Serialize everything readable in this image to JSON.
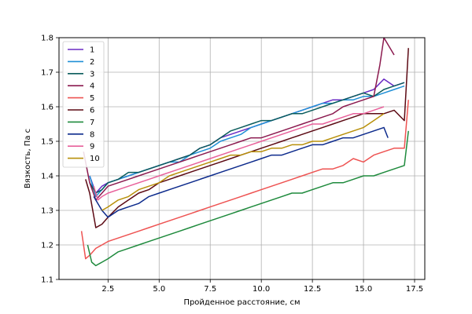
{
  "chart_data": {
    "type": "line",
    "xlabel": "Пройденное расстояние, см",
    "ylabel": "Вязкость, Па с",
    "xlim": [
      0.1,
      18.0
    ],
    "ylim": [
      1.1,
      1.8
    ],
    "xticks": [
      2.5,
      5.0,
      7.5,
      10.0,
      12.5,
      15.0,
      17.5
    ],
    "xtick_labels": [
      "2.5",
      "5.0",
      "7.5",
      "10.0",
      "12.5",
      "15.0",
      "17.5"
    ],
    "yticks": [
      1.1,
      1.2,
      1.3,
      1.4,
      1.5,
      1.6,
      1.7,
      1.8
    ],
    "ytick_labels": [
      "1.1",
      "1.2",
      "1.3",
      "1.4",
      "1.5",
      "1.6",
      "1.7",
      "1.8"
    ],
    "grid": true,
    "legend_position": "top-left",
    "series": [
      {
        "name": "1",
        "color": "#6a2bc4",
        "x": [
          1.6,
          1.9,
          2.2,
          2.5,
          3.0,
          3.5,
          4.0,
          4.5,
          5.0,
          5.5,
          6.0,
          6.5,
          7.0,
          7.5,
          8.0,
          8.5,
          9.0,
          9.5,
          10.0,
          10.5,
          11.0,
          11.5,
          12.0,
          12.5,
          13.0,
          13.5,
          14.0,
          14.5,
          15.0,
          15.5,
          16.0,
          16.5,
          17.0
        ],
        "y": [
          1.4,
          1.35,
          1.37,
          1.38,
          1.39,
          1.4,
          1.41,
          1.42,
          1.43,
          1.44,
          1.45,
          1.46,
          1.48,
          1.49,
          1.51,
          1.52,
          1.53,
          1.54,
          1.55,
          1.56,
          1.57,
          1.58,
          1.59,
          1.6,
          1.61,
          1.62,
          1.62,
          1.63,
          1.64,
          1.65,
          1.68,
          1.66,
          1.67
        ]
      },
      {
        "name": "2",
        "color": "#1f8fd6",
        "x": [
          1.6,
          1.9,
          2.2,
          2.5,
          3.0,
          3.5,
          4.0,
          4.5,
          5.0,
          5.5,
          6.0,
          6.5,
          7.0,
          7.5,
          8.0,
          8.5,
          9.0,
          9.5,
          10.0,
          10.5,
          11.0,
          11.5,
          12.0,
          12.5,
          13.0,
          13.5,
          14.0,
          14.5,
          15.0,
          15.5,
          16.0,
          16.5,
          17.0
        ],
        "y": [
          1.4,
          1.34,
          1.36,
          1.38,
          1.39,
          1.4,
          1.41,
          1.42,
          1.43,
          1.44,
          1.44,
          1.46,
          1.47,
          1.48,
          1.5,
          1.51,
          1.52,
          1.54,
          1.55,
          1.56,
          1.57,
          1.58,
          1.59,
          1.6,
          1.61,
          1.61,
          1.62,
          1.62,
          1.63,
          1.63,
          1.64,
          1.65,
          1.66
        ]
      },
      {
        "name": "3",
        "color": "#0a5c5c",
        "x": [
          1.6,
          1.9,
          2.2,
          2.5,
          3.0,
          3.5,
          4.0,
          4.5,
          5.0,
          5.5,
          6.0,
          6.5,
          7.0,
          7.5,
          8.0,
          8.5,
          9.0,
          9.5,
          10.0,
          10.5,
          11.0,
          11.5,
          12.0,
          12.5,
          13.0,
          13.5,
          14.0,
          14.5,
          15.0,
          15.5,
          16.0,
          16.5,
          17.0
        ],
        "y": [
          1.38,
          1.35,
          1.36,
          1.38,
          1.39,
          1.41,
          1.41,
          1.42,
          1.43,
          1.44,
          1.45,
          1.46,
          1.48,
          1.49,
          1.51,
          1.53,
          1.54,
          1.55,
          1.56,
          1.56,
          1.57,
          1.58,
          1.58,
          1.59,
          1.6,
          1.61,
          1.62,
          1.63,
          1.64,
          1.63,
          1.65,
          1.66,
          1.67
        ]
      },
      {
        "name": "4",
        "color": "#8b1a4f",
        "x": [
          1.3,
          1.6,
          1.9,
          2.2,
          2.5,
          3.0,
          3.5,
          4.0,
          4.5,
          5.0,
          5.5,
          6.0,
          6.5,
          7.0,
          7.5,
          8.0,
          8.5,
          9.0,
          9.5,
          10.0,
          10.5,
          11.0,
          11.5,
          12.0,
          12.5,
          13.0,
          13.5,
          14.0,
          14.5,
          15.0,
          15.5,
          15.8,
          16.0,
          16.5
        ],
        "y": [
          1.47,
          1.38,
          1.33,
          1.35,
          1.37,
          1.38,
          1.39,
          1.4,
          1.41,
          1.42,
          1.43,
          1.44,
          1.45,
          1.46,
          1.47,
          1.48,
          1.49,
          1.5,
          1.51,
          1.51,
          1.52,
          1.53,
          1.54,
          1.55,
          1.56,
          1.57,
          1.58,
          1.6,
          1.61,
          1.62,
          1.63,
          1.72,
          1.8,
          1.75
        ]
      },
      {
        "name": "5",
        "color": "#ee5352",
        "x": [
          1.2,
          1.4,
          1.6,
          1.9,
          2.2,
          2.5,
          3.0,
          3.5,
          4.0,
          4.5,
          5.0,
          5.5,
          6.0,
          6.5,
          7.0,
          7.5,
          8.0,
          8.5,
          9.0,
          9.5,
          10.0,
          10.5,
          11.0,
          11.5,
          12.0,
          12.5,
          13.0,
          13.5,
          14.0,
          14.5,
          15.0,
          15.5,
          16.0,
          16.5,
          17.0,
          17.2
        ],
        "y": [
          1.24,
          1.16,
          1.17,
          1.19,
          1.2,
          1.21,
          1.22,
          1.23,
          1.24,
          1.25,
          1.26,
          1.27,
          1.28,
          1.29,
          1.3,
          1.31,
          1.32,
          1.33,
          1.34,
          1.35,
          1.36,
          1.37,
          1.38,
          1.39,
          1.4,
          1.41,
          1.42,
          1.42,
          1.43,
          1.45,
          1.44,
          1.46,
          1.47,
          1.48,
          1.48,
          1.62
        ]
      },
      {
        "name": "6",
        "color": "#5c0a14",
        "x": [
          1.4,
          1.6,
          1.9,
          2.2,
          2.5,
          3.0,
          3.5,
          4.0,
          4.5,
          5.0,
          5.5,
          6.0,
          6.5,
          7.0,
          7.5,
          8.0,
          8.5,
          9.0,
          9.5,
          10.0,
          10.5,
          11.0,
          11.5,
          12.0,
          12.5,
          13.0,
          13.5,
          14.0,
          14.5,
          15.0,
          15.5,
          16.0,
          16.5,
          17.0,
          17.2
        ],
        "y": [
          1.39,
          1.35,
          1.25,
          1.26,
          1.28,
          1.31,
          1.33,
          1.35,
          1.36,
          1.38,
          1.39,
          1.4,
          1.41,
          1.42,
          1.43,
          1.44,
          1.45,
          1.46,
          1.47,
          1.48,
          1.49,
          1.5,
          1.51,
          1.52,
          1.53,
          1.54,
          1.55,
          1.56,
          1.57,
          1.58,
          1.58,
          1.58,
          1.59,
          1.56,
          1.77
        ]
      },
      {
        "name": "7",
        "color": "#1e8a3c",
        "x": [
          1.5,
          1.7,
          1.9,
          2.2,
          2.5,
          3.0,
          3.5,
          4.0,
          4.5,
          5.0,
          5.5,
          6.0,
          6.5,
          7.0,
          7.5,
          8.0,
          8.5,
          9.0,
          9.5,
          10.0,
          10.5,
          11.0,
          11.5,
          12.0,
          12.5,
          13.0,
          13.5,
          14.0,
          14.5,
          15.0,
          15.5,
          16.0,
          16.5,
          17.0,
          17.2
        ],
        "y": [
          1.2,
          1.15,
          1.14,
          1.15,
          1.16,
          1.18,
          1.19,
          1.2,
          1.21,
          1.22,
          1.23,
          1.24,
          1.25,
          1.26,
          1.27,
          1.28,
          1.29,
          1.3,
          1.31,
          1.32,
          1.33,
          1.34,
          1.35,
          1.35,
          1.36,
          1.37,
          1.38,
          1.38,
          1.39,
          1.4,
          1.4,
          1.41,
          1.42,
          1.43,
          1.53
        ]
      },
      {
        "name": "8",
        "color": "#0c2a8c",
        "x": [
          1.8,
          2.0,
          2.2,
          2.5,
          3.0,
          3.5,
          4.0,
          4.5,
          5.0,
          5.5,
          6.0,
          6.5,
          7.0,
          7.5,
          8.0,
          8.5,
          9.0,
          9.5,
          10.0,
          10.5,
          11.0,
          11.5,
          12.0,
          12.5,
          13.0,
          13.5,
          14.0,
          14.5,
          15.0,
          15.5,
          16.0,
          16.2
        ],
        "y": [
          1.34,
          1.32,
          1.3,
          1.28,
          1.3,
          1.31,
          1.32,
          1.34,
          1.35,
          1.36,
          1.37,
          1.38,
          1.39,
          1.4,
          1.41,
          1.42,
          1.43,
          1.44,
          1.45,
          1.46,
          1.46,
          1.47,
          1.48,
          1.49,
          1.49,
          1.5,
          1.51,
          1.51,
          1.52,
          1.53,
          1.54,
          1.51
        ]
      },
      {
        "name": "9",
        "color": "#e8609a",
        "x": [
          1.8,
          2.0,
          2.2,
          2.5,
          3.0,
          3.5,
          4.0,
          4.5,
          5.0,
          5.5,
          6.0,
          6.5,
          7.0,
          7.5,
          8.0,
          8.5,
          9.0,
          9.5,
          10.0,
          10.5,
          11.0,
          11.5,
          12.0,
          12.5,
          13.0,
          13.5,
          14.0,
          14.5,
          15.0,
          15.5,
          16.0
        ],
        "y": [
          1.37,
          1.33,
          1.34,
          1.35,
          1.36,
          1.37,
          1.38,
          1.39,
          1.4,
          1.41,
          1.42,
          1.43,
          1.44,
          1.45,
          1.46,
          1.47,
          1.48,
          1.49,
          1.5,
          1.51,
          1.52,
          1.53,
          1.54,
          1.55,
          1.55,
          1.56,
          1.57,
          1.58,
          1.58,
          1.59,
          1.6
        ]
      },
      {
        "name": "10",
        "color": "#b8900a",
        "x": [
          2.2,
          2.5,
          3.0,
          3.5,
          4.0,
          4.5,
          5.0,
          5.5,
          6.0,
          6.5,
          7.0,
          7.5,
          8.0,
          8.5,
          9.0,
          9.5,
          10.0,
          10.5,
          11.0,
          11.5,
          12.0,
          12.5,
          13.0,
          13.5,
          14.0,
          14.5,
          15.0,
          15.5,
          16.0
        ],
        "y": [
          1.3,
          1.31,
          1.33,
          1.34,
          1.36,
          1.37,
          1.38,
          1.4,
          1.41,
          1.42,
          1.43,
          1.44,
          1.45,
          1.46,
          1.46,
          1.47,
          1.47,
          1.48,
          1.48,
          1.49,
          1.49,
          1.5,
          1.5,
          1.51,
          1.52,
          1.53,
          1.54,
          1.56,
          1.58
        ]
      }
    ]
  }
}
